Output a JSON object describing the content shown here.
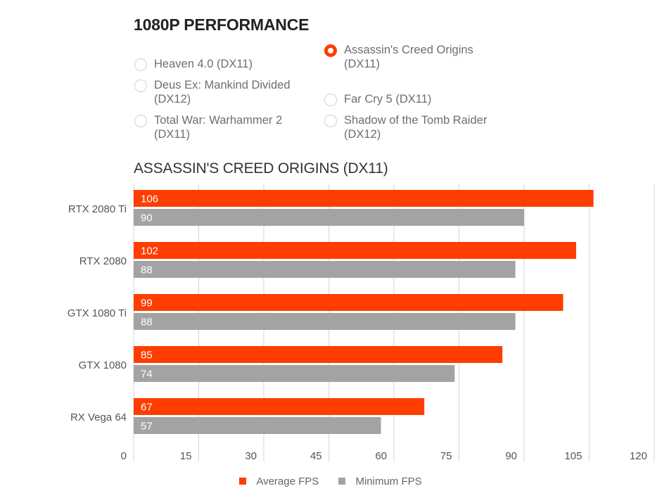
{
  "heading": "1080P PERFORMANCE",
  "options": [
    {
      "label": "Heaven 4.0 (DX11)",
      "selected": false
    },
    {
      "label": "Deus Ex: Mankind Divided (DX12)",
      "selected": false
    },
    {
      "label": "Total War: Warhammer 2 (DX11)",
      "selected": false
    },
    {
      "label": "Assassin's Creed Origins (DX11)",
      "selected": true
    },
    {
      "label": "Far Cry 5 (DX11)",
      "selected": false
    },
    {
      "label": "Shadow of the Tomb Raider (DX12)",
      "selected": false
    }
  ],
  "chart_data": {
    "type": "bar",
    "orientation": "horizontal",
    "title": "ASSASSIN'S CREED ORIGINS (DX11)",
    "categories": [
      "RTX 2080 Ti",
      "RTX 2080",
      "GTX 1080 Ti",
      "GTX 1080",
      "RX Vega 64"
    ],
    "series": [
      {
        "name": "Average FPS",
        "color": "#ff3d00",
        "values": [
          106,
          102,
          99,
          85,
          67
        ]
      },
      {
        "name": "Minimum FPS",
        "color": "#a3a3a3",
        "values": [
          90,
          88,
          88,
          74,
          57
        ]
      }
    ],
    "xlim": [
      0,
      120
    ],
    "xticks": [
      0,
      15,
      30,
      45,
      60,
      75,
      90,
      105,
      120
    ],
    "grid": true,
    "legend_position": "bottom-center"
  }
}
